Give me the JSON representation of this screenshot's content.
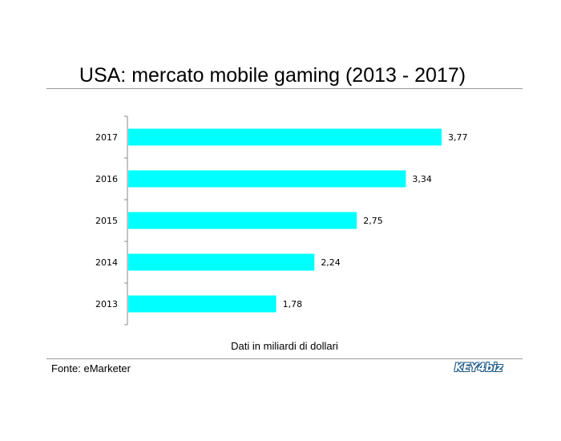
{
  "header": {
    "title": "USA: mercato mobile gaming (2013 - 2017)"
  },
  "footer": {
    "note": "Dati in miliardi di dollari",
    "source": "Fonte: eMarketer",
    "logo_text": "KEY4biz"
  },
  "colors": {
    "bar": "#00ffff",
    "axis": "#888888",
    "rule": "#9a9a9a",
    "logo": "#1f5a8a"
  },
  "chart_data": {
    "type": "bar",
    "orientation": "horizontal",
    "categories": [
      "2013",
      "2014",
      "2015",
      "2016",
      "2017"
    ],
    "values": [
      1.78,
      2.24,
      2.75,
      3.34,
      3.77
    ],
    "value_labels": [
      "1,78",
      "2,24",
      "2,75",
      "3,34",
      "3,77"
    ],
    "title": "USA: mercato mobile gaming (2013 - 2017)",
    "xlabel": "Dati in miliardi di dollari",
    "ylabel": "",
    "xlim": [
      0,
      3.77
    ],
    "grid": false
  }
}
